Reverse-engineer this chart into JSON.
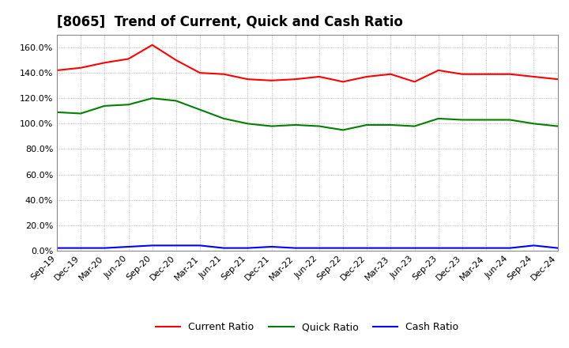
{
  "title": "[8065]  Trend of Current, Quick and Cash Ratio",
  "x_labels": [
    "Sep-19",
    "Dec-19",
    "Mar-20",
    "Jun-20",
    "Sep-20",
    "Dec-20",
    "Mar-21",
    "Jun-21",
    "Sep-21",
    "Dec-21",
    "Mar-22",
    "Jun-22",
    "Sep-22",
    "Dec-22",
    "Mar-23",
    "Jun-23",
    "Sep-23",
    "Dec-23",
    "Mar-24",
    "Jun-24",
    "Sep-24",
    "Dec-24"
  ],
  "current_ratio": [
    1.42,
    1.44,
    1.48,
    1.51,
    1.62,
    1.5,
    1.4,
    1.39,
    1.35,
    1.34,
    1.35,
    1.37,
    1.33,
    1.37,
    1.39,
    1.33,
    1.42,
    1.39,
    1.39,
    1.39,
    1.37,
    1.35
  ],
  "quick_ratio": [
    1.09,
    1.08,
    1.14,
    1.15,
    1.2,
    1.18,
    1.11,
    1.04,
    1.0,
    0.98,
    0.99,
    0.98,
    0.95,
    0.99,
    0.99,
    0.98,
    1.04,
    1.03,
    1.03,
    1.03,
    1.0,
    0.98
  ],
  "cash_ratio": [
    0.02,
    0.02,
    0.02,
    0.03,
    0.04,
    0.04,
    0.04,
    0.02,
    0.02,
    0.03,
    0.02,
    0.02,
    0.02,
    0.02,
    0.02,
    0.02,
    0.02,
    0.02,
    0.02,
    0.02,
    0.04,
    0.02
  ],
  "current_color": "#FF0000",
  "quick_color": "#008000",
  "cash_color": "#0000FF",
  "ylim": [
    0.0,
    1.7
  ],
  "yticks": [
    0.0,
    0.2,
    0.4,
    0.6,
    0.8,
    1.0,
    1.2,
    1.4,
    1.6
  ],
  "background_color": "#FFFFFF",
  "grid_color": "#999999",
  "title_fontsize": 12,
  "legend_labels": [
    "Current Ratio",
    "Quick Ratio",
    "Cash Ratio"
  ]
}
